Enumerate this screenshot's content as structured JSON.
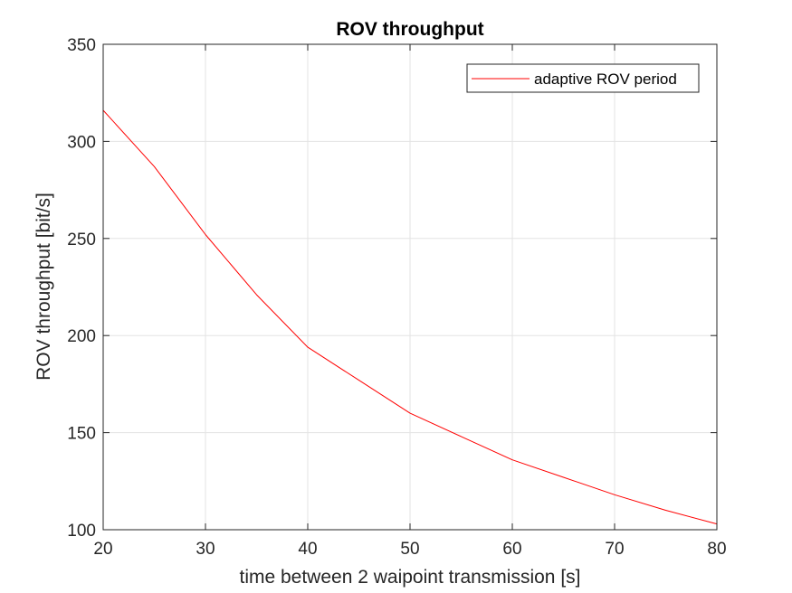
{
  "chart_data": {
    "type": "line",
    "title": "ROV throughput",
    "xlabel": "time between 2 waipoint transmission [s]",
    "ylabel": "ROV throughput [bit/s]",
    "xlim": [
      20,
      80
    ],
    "ylim": [
      100,
      350
    ],
    "xticks": [
      20,
      30,
      40,
      50,
      60,
      70,
      80
    ],
    "yticks": [
      100,
      150,
      200,
      250,
      300,
      350
    ],
    "grid": true,
    "legend_position": "top-right",
    "series": [
      {
        "name": "adaptive ROV period",
        "color": "#ff0000",
        "x": [
          20,
          25,
          30,
          35,
          40,
          45,
          50,
          55,
          60,
          65,
          70,
          75,
          80
        ],
        "y": [
          316,
          287,
          252,
          221,
          194,
          177,
          160,
          148,
          136,
          127,
          118,
          110,
          103
        ]
      }
    ]
  }
}
